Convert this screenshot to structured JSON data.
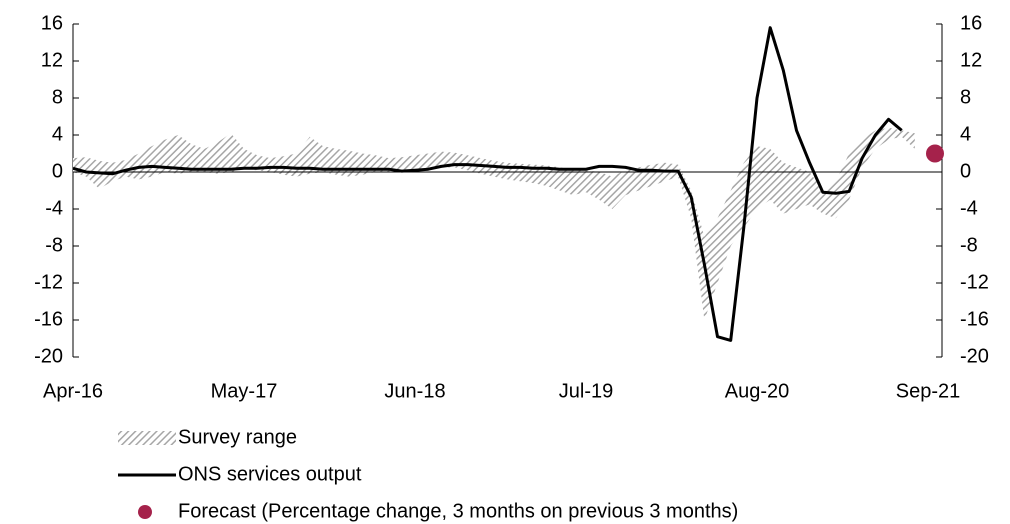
{
  "chart_data": {
    "type": "line",
    "categories": [
      "Apr-16",
      null,
      null,
      null,
      null,
      null,
      null,
      null,
      null,
      null,
      null,
      null,
      null,
      "May-17",
      null,
      null,
      null,
      null,
      null,
      null,
      null,
      null,
      null,
      null,
      null,
      null,
      "Jun-18",
      null,
      null,
      null,
      null,
      null,
      null,
      null,
      null,
      null,
      null,
      null,
      null,
      "Jul-19",
      null,
      null,
      null,
      null,
      null,
      null,
      null,
      null,
      null,
      null,
      null,
      null,
      "Aug-20",
      null,
      null,
      null,
      null,
      null,
      null,
      null,
      null,
      null,
      null,
      null,
      null,
      "Sep-21"
    ],
    "series": [
      {
        "name": "Survey range",
        "type": "range",
        "color": "#a6a6a6",
        "upper": [
          1.5,
          1.6,
          1.2,
          1.0,
          1.3,
          2.0,
          2.8,
          3.5,
          4.0,
          3.0,
          2.5,
          3.2,
          4.2,
          2.5,
          1.8,
          1.5,
          1.7,
          2.0,
          3.8,
          2.8,
          2.5,
          2.3,
          2.0,
          1.8,
          1.5,
          1.6,
          1.8,
          2.0,
          2.2,
          2.1,
          1.8,
          1.5,
          1.2,
          1.0,
          0.9,
          0.8,
          0.7,
          0.5,
          0.3,
          0.2,
          0.0,
          -0.5,
          0.2,
          0.5,
          0.8,
          1.0,
          0.8,
          -2.0,
          -7.0,
          -5.0,
          -2.0,
          1.0,
          2.8,
          2.5,
          1.0,
          0.5,
          0.0,
          -2.0,
          -1.0,
          2.0,
          3.5,
          4.5,
          4.8,
          4.5,
          4.2,
          null
        ],
        "lower": [
          0.0,
          -0.5,
          -1.8,
          -1.0,
          -0.5,
          -0.8,
          -0.5,
          0.0,
          -0.2,
          0.0,
          0.0,
          -0.2,
          0.0,
          0.3,
          0.2,
          0.0,
          -0.3,
          -0.5,
          -0.2,
          0.0,
          -0.3,
          -0.5,
          -0.3,
          0.0,
          0.0,
          0.2,
          0.0,
          0.2,
          0.5,
          0.5,
          0.2,
          -0.2,
          -0.5,
          -0.8,
          -1.0,
          -1.2,
          -1.5,
          -2.0,
          -2.5,
          -2.2,
          -3.0,
          -4.0,
          -2.5,
          -2.0,
          -1.5,
          -1.0,
          -0.5,
          -5.0,
          -16.0,
          -12.0,
          -8.0,
          -6.0,
          -4.0,
          -3.0,
          -4.5,
          -4.0,
          -3.5,
          -4.5,
          -5.0,
          -3.0,
          0.5,
          2.5,
          3.5,
          3.8,
          2.5,
          null
        ]
      },
      {
        "name": "ONS services output",
        "type": "line",
        "color": "#000000",
        "values": [
          0.4,
          0.0,
          -0.1,
          -0.2,
          0.2,
          0.5,
          0.6,
          0.5,
          0.4,
          0.3,
          0.3,
          0.3,
          0.3,
          0.4,
          0.4,
          0.5,
          0.5,
          0.4,
          0.4,
          0.3,
          0.3,
          0.3,
          0.3,
          0.3,
          0.3,
          0.1,
          0.2,
          0.3,
          0.6,
          0.8,
          0.8,
          0.7,
          0.6,
          0.5,
          0.5,
          0.4,
          0.4,
          0.3,
          0.3,
          0.3,
          0.6,
          0.6,
          0.5,
          0.2,
          0.2,
          0.1,
          0.1,
          -2.7,
          -10.0,
          -17.8,
          -18.2,
          -6.0,
          8.0,
          15.6,
          11.0,
          4.5,
          1.0,
          -2.2,
          -2.3,
          -2.1,
          1.5,
          4.0,
          5.7,
          4.5,
          null,
          null
        ]
      },
      {
        "name": "Forecast (Percentage change, 3 months on previous 3 months)",
        "type": "point",
        "color": "#a5224b",
        "values": [
          null,
          null,
          null,
          null,
          null,
          null,
          null,
          null,
          null,
          null,
          null,
          null,
          null,
          null,
          null,
          null,
          null,
          null,
          null,
          null,
          null,
          null,
          null,
          null,
          null,
          null,
          null,
          null,
          null,
          null,
          null,
          null,
          null,
          null,
          null,
          null,
          null,
          null,
          null,
          null,
          null,
          null,
          null,
          null,
          null,
          null,
          null,
          null,
          null,
          null,
          null,
          null,
          null,
          null,
          null,
          null,
          null,
          null,
          null,
          null,
          null,
          null,
          null,
          null,
          null,
          2.0
        ]
      }
    ],
    "ylim": [
      -20,
      16
    ],
    "yticks": [
      16,
      12,
      8,
      4,
      0,
      -4,
      -8,
      -12,
      -16,
      -20
    ],
    "y2lim": [
      -20,
      16
    ],
    "y2ticks": [
      16,
      12,
      8,
      4,
      0,
      -4,
      -8,
      -12,
      -16,
      -20
    ],
    "legend": "bottom"
  }
}
